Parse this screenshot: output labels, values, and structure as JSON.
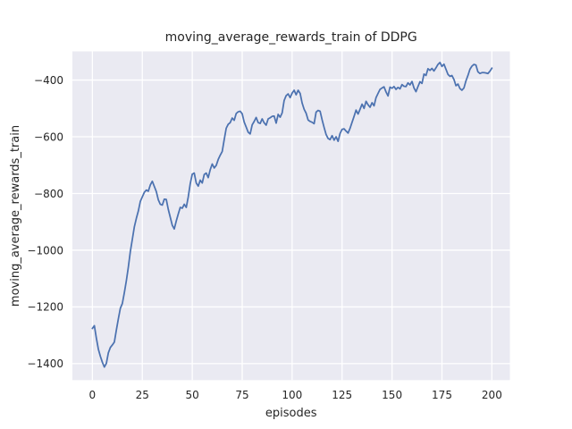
{
  "chart_data": {
    "type": "line",
    "title": "moving_average_rewards_train of DDPG",
    "xlabel": "episodes",
    "ylabel": "moving_average_rewards_train",
    "x_ticks": [
      0,
      25,
      50,
      75,
      100,
      125,
      150,
      175,
      200
    ],
    "y_ticks": [
      -400,
      -600,
      -800,
      -1000,
      -1200,
      -1400
    ],
    "xlim": [
      -10,
      209
    ],
    "ylim": [
      -1458,
      -299
    ],
    "grid": true,
    "legend": false,
    "style": {
      "figure_background": "#ffffff",
      "axes_background": "#eaeaf2",
      "grid_color": "#ffffff",
      "line_color": "#4c72b0",
      "text_color": "#262626"
    },
    "series": [
      {
        "name": "moving_average_rewards_train",
        "x": [
          0,
          1,
          2,
          3,
          4,
          5,
          6,
          7,
          8,
          9,
          10,
          11,
          12,
          13,
          14,
          15,
          16,
          17,
          18,
          19,
          20,
          21,
          22,
          23,
          24,
          25,
          26,
          27,
          28,
          29,
          30,
          31,
          32,
          33,
          34,
          35,
          36,
          37,
          38,
          39,
          40,
          41,
          42,
          43,
          44,
          45,
          46,
          47,
          48,
          49,
          50,
          51,
          52,
          53,
          54,
          55,
          56,
          57,
          58,
          59,
          60,
          61,
          62,
          63,
          64,
          65,
          66,
          67,
          68,
          69,
          70,
          71,
          72,
          73,
          74,
          75,
          76,
          77,
          78,
          79,
          80,
          81,
          82,
          83,
          84,
          85,
          86,
          87,
          88,
          89,
          90,
          91,
          92,
          93,
          94,
          95,
          96,
          97,
          98,
          99,
          100,
          101,
          102,
          103,
          104,
          105,
          106,
          107,
          108,
          109,
          110,
          111,
          112,
          113,
          114,
          115,
          116,
          117,
          118,
          119,
          120,
          121,
          122,
          123,
          124,
          125,
          126,
          127,
          128,
          129,
          130,
          131,
          132,
          133,
          134,
          135,
          136,
          137,
          138,
          139,
          140,
          141,
          142,
          143,
          144,
          145,
          146,
          147,
          148,
          149,
          150,
          151,
          152,
          153,
          154,
          155,
          156,
          157,
          158,
          159,
          160,
          161,
          162,
          163,
          164,
          165,
          166,
          167,
          168,
          169,
          170,
          171,
          172,
          173,
          174,
          175,
          176,
          177,
          178,
          179,
          180,
          181,
          182,
          183,
          184,
          185,
          186,
          187,
          188,
          189,
          190,
          191,
          192,
          193,
          194,
          195,
          196,
          197,
          198,
          199,
          200
        ],
        "y": [
          -1276,
          -1266,
          -1310,
          -1349,
          -1374,
          -1395,
          -1412,
          -1399,
          -1362,
          -1343,
          -1334,
          -1324,
          -1282,
          -1242,
          -1205,
          -1188,
          -1150,
          -1108,
          -1060,
          -1005,
          -962,
          -918,
          -888,
          -862,
          -828,
          -812,
          -796,
          -788,
          -792,
          -770,
          -757,
          -775,
          -793,
          -822,
          -838,
          -841,
          -820,
          -821,
          -856,
          -884,
          -912,
          -925,
          -897,
          -872,
          -849,
          -852,
          -838,
          -849,
          -812,
          -765,
          -732,
          -728,
          -763,
          -774,
          -753,
          -763,
          -733,
          -728,
          -744,
          -716,
          -696,
          -710,
          -701,
          -680,
          -665,
          -652,
          -610,
          -570,
          -556,
          -550,
          -534,
          -542,
          -518,
          -512,
          -510,
          -519,
          -548,
          -566,
          -584,
          -590,
          -558,
          -546,
          -532,
          -550,
          -553,
          -537,
          -551,
          -559,
          -537,
          -533,
          -528,
          -527,
          -552,
          -521,
          -531,
          -516,
          -472,
          -455,
          -449,
          -462,
          -446,
          -436,
          -452,
          -436,
          -447,
          -481,
          -503,
          -517,
          -541,
          -546,
          -549,
          -554,
          -513,
          -507,
          -510,
          -540,
          -567,
          -592,
          -606,
          -610,
          -596,
          -612,
          -600,
          -616,
          -588,
          -574,
          -572,
          -580,
          -587,
          -570,
          -549,
          -528,
          -506,
          -520,
          -503,
          -485,
          -500,
          -475,
          -487,
          -496,
          -480,
          -491,
          -462,
          -447,
          -433,
          -428,
          -424,
          -442,
          -456,
          -425,
          -429,
          -423,
          -433,
          -426,
          -431,
          -416,
          -422,
          -423,
          -410,
          -417,
          -405,
          -428,
          -441,
          -423,
          -406,
          -412,
          -379,
          -384,
          -360,
          -366,
          -359,
          -368,
          -357,
          -345,
          -338,
          -352,
          -344,
          -362,
          -380,
          -387,
          -384,
          -398,
          -420,
          -414,
          -430,
          -436,
          -428,
          -403,
          -384,
          -362,
          -351,
          -345,
          -347,
          -371,
          -377,
          -374,
          -374,
          -375,
          -377,
          -369,
          -358
        ]
      }
    ]
  }
}
